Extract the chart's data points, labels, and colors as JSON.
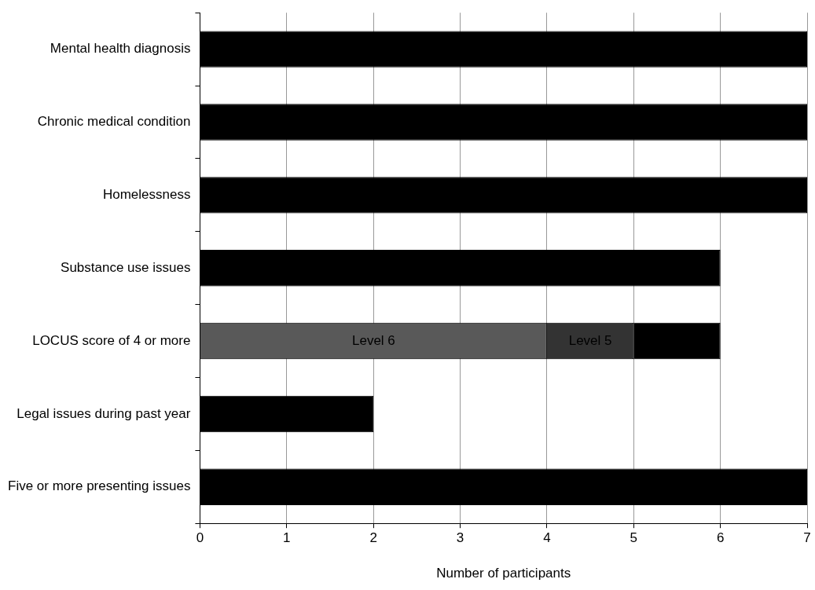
{
  "chart_data": {
    "type": "bar",
    "orientation": "horizontal",
    "stacked": true,
    "xlabel": "Number of participants",
    "categories": [
      "Mental health diagnosis",
      "Chronic medical condition",
      "Homelessness",
      "Substance use issues",
      "LOCUS score of 4 or more",
      "Legal issues during past year",
      "Five or more presenting issues"
    ],
    "series": [
      {
        "name": "Level 6",
        "color": "#595959",
        "values": [
          null,
          null,
          null,
          null,
          4,
          null,
          null
        ]
      },
      {
        "name": "Level 5",
        "color": "#333333",
        "values": [
          null,
          null,
          null,
          null,
          1,
          null,
          null
        ]
      },
      {
        "color": "#000000",
        "values": [
          7,
          7,
          7,
          6,
          1,
          2,
          7
        ]
      }
    ],
    "xlim": [
      0,
      7
    ],
    "xticks": [
      0,
      1,
      2,
      3,
      4,
      5,
      6,
      7
    ],
    "grid": "x",
    "legend": false
  }
}
